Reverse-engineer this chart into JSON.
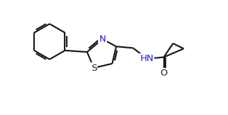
{
  "background": "#ffffff",
  "bond_color": "#1a1a1a",
  "N_color": "#1a1acc",
  "S_color": "#1a1a1a",
  "O_color": "#1a1a1a",
  "NH_color": "#1a1acc",
  "bond_lw": 1.6,
  "font_size": 9.5,
  "xlim": [
    -4.2,
    3.2
  ],
  "ylim": [
    -1.4,
    1.8
  ]
}
